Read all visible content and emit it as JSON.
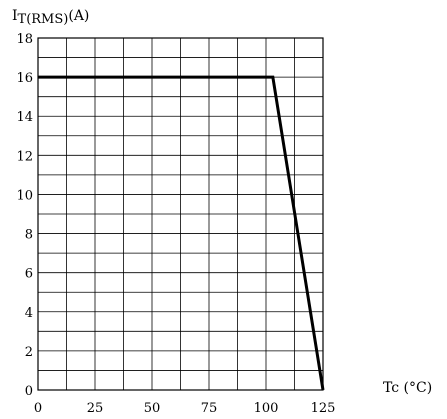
{
  "chart_data": {
    "type": "line",
    "title": "",
    "ylabel_main": "I",
    "ylabel_sub": "T(RMS)",
    "ylabel_unit": "(A)",
    "xlabel": "Tc (°C)",
    "xlim": [
      0,
      125
    ],
    "ylim": [
      0,
      18
    ],
    "x_major_ticks": [
      0,
      25,
      50,
      75,
      100,
      125
    ],
    "y_major_ticks": [
      0,
      2,
      4,
      6,
      8,
      10,
      12,
      14,
      16,
      18
    ],
    "x_grid_step": 12.5,
    "y_grid_step": 1,
    "grid": true,
    "series": [
      {
        "x": [
          0,
          103,
          125
        ],
        "y": [
          16,
          16,
          0
        ]
      }
    ],
    "colors": {
      "line": "#000000",
      "grid": "#000000",
      "background": "#ffffff"
    }
  }
}
